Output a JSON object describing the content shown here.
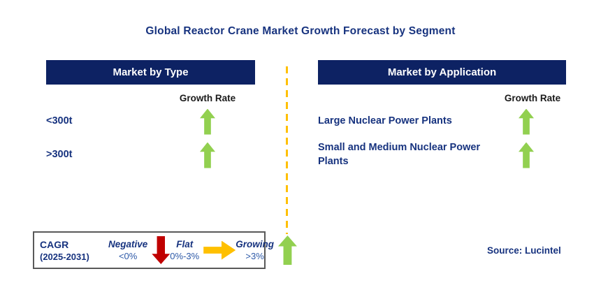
{
  "title": "Global Reactor Crane Market Growth Forecast by Segment",
  "colors": {
    "header_band_navy": "#0d2263",
    "text_navy": "#17337f",
    "growth_green": "#92d050",
    "negative_red": "#c00000",
    "flat_yellow": "#ffc000",
    "divider_yellow": "#ffc000",
    "growth_rate_text": "#1a1a1a",
    "range_blue": "#2e5aa8"
  },
  "panels": [
    {
      "header": "Market by Type",
      "growth_rate_label": "Growth Rate",
      "rows": [
        {
          "label": "<300t",
          "trend": "up"
        },
        {
          "label": ">300t",
          "trend": "up"
        }
      ]
    },
    {
      "header": "Market by Application",
      "growth_rate_label": "Growth Rate",
      "rows": [
        {
          "label": "Large Nuclear Power Plants",
          "trend": "up"
        },
        {
          "label": "Small and Medium Nuclear Power Plants",
          "trend": "up"
        }
      ]
    }
  ],
  "legend": {
    "title_line1": "CAGR",
    "title_line2": "(2025-2031)",
    "items": [
      {
        "label": "Negative",
        "range": "<0%",
        "direction": "down"
      },
      {
        "label": "Flat",
        "range": "0%-3%",
        "direction": "right"
      },
      {
        "label": "Growing",
        "range": ">3%",
        "direction": "up"
      }
    ]
  },
  "source": "Source: Lucintel"
}
